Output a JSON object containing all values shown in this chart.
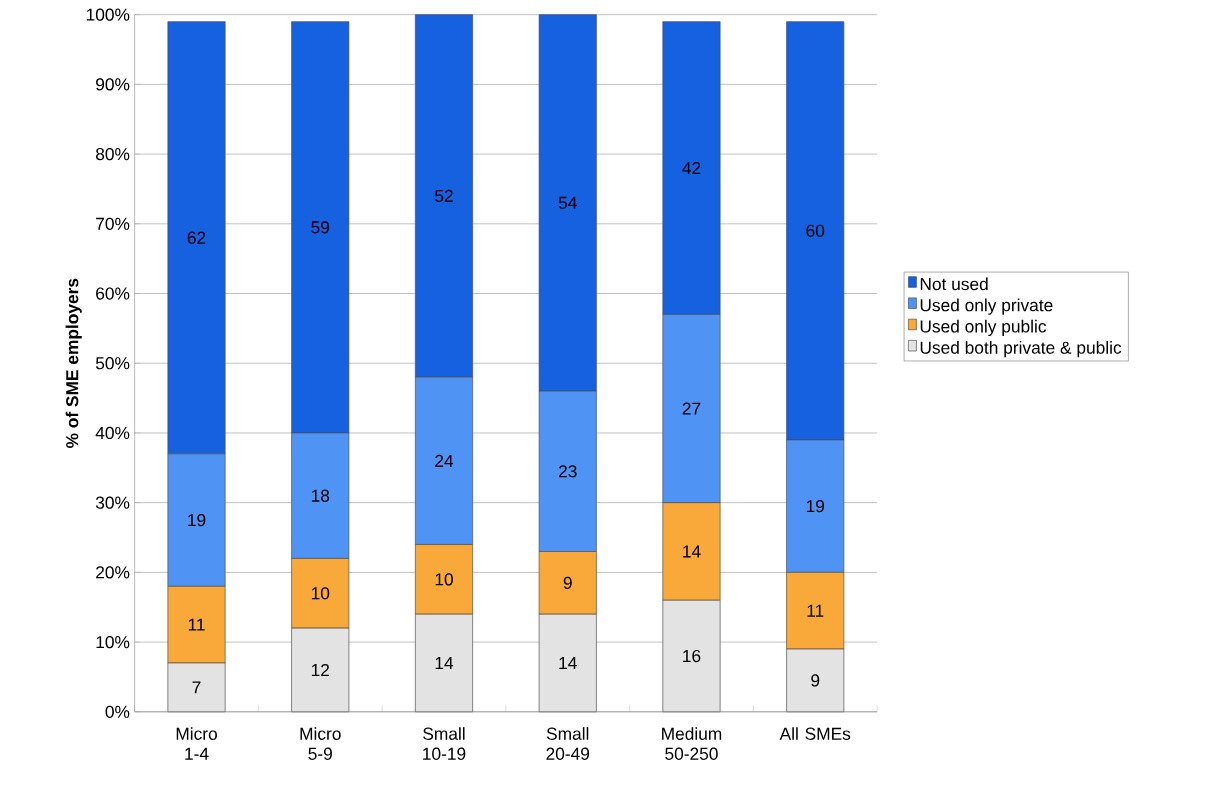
{
  "chart_data": {
    "type": "bar",
    "stacked": true,
    "ylabel": "% of SME employers",
    "categories": [
      "Micro 1-4",
      "Micro 5-9",
      "Small 10-19",
      "Small 20-49",
      "Medium 50-250",
      "All SMEs"
    ],
    "series": [
      {
        "name": "Used both private & public",
        "color": "#e3e3e3",
        "values": [
          7,
          12,
          14,
          14,
          16,
          9
        ]
      },
      {
        "name": "Used only public",
        "color": "#f9a93a",
        "values": [
          11,
          10,
          10,
          9,
          14,
          11
        ]
      },
      {
        "name": "Used only private",
        "color": "#4f94f5",
        "values": [
          19,
          18,
          24,
          23,
          27,
          19
        ]
      },
      {
        "name": "Not used",
        "color": "#1561e0",
        "values": [
          62,
          59,
          52,
          54,
          42,
          60
        ]
      }
    ],
    "ylim": [
      0,
      100
    ],
    "yticks": [
      {
        "value": 0,
        "label": "0%"
      },
      {
        "value": 10,
        "label": "10%"
      },
      {
        "value": 20,
        "label": "20%"
      },
      {
        "value": 30,
        "label": "30%"
      },
      {
        "value": 40,
        "label": "40%"
      },
      {
        "value": 50,
        "label": "50%"
      },
      {
        "value": 60,
        "label": "60%"
      },
      {
        "value": 70,
        "label": "70%"
      },
      {
        "value": 80,
        "label": "80%"
      },
      {
        "value": 90,
        "label": "90%"
      },
      {
        "value": 100,
        "label": "100%"
      }
    ],
    "grid": "y",
    "legend": "right",
    "data_labels": true
  }
}
